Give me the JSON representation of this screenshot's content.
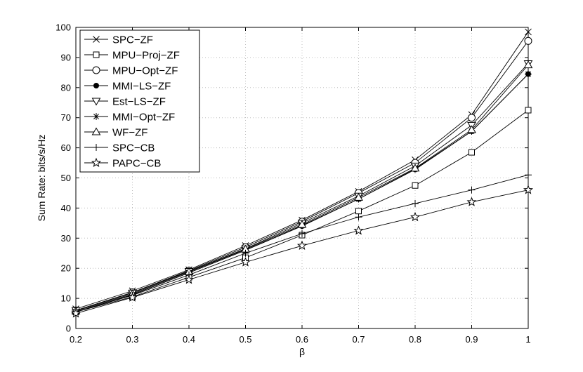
{
  "chart_data": {
    "type": "line",
    "title": "",
    "xlabel": "β",
    "ylabel": "Sum Rate: bits/s/Hz",
    "xlim": [
      0.2,
      1.0
    ],
    "ylim": [
      0,
      100
    ],
    "grid": true,
    "legend_position": "top-left",
    "x": [
      0.2,
      0.3,
      0.4,
      0.5,
      0.6,
      0.7,
      0.8,
      0.9,
      1.0
    ],
    "x_tick_labels": [
      "0.2",
      "0.3",
      "0.4",
      "0.5",
      "0.6",
      "0.7",
      "0.8",
      "0.9",
      "1"
    ],
    "y_tick_labels": [
      "0",
      "10",
      "20",
      "30",
      "40",
      "50",
      "60",
      "70",
      "80",
      "90",
      "100"
    ],
    "series": [
      {
        "name": "SPC−ZF",
        "marker": "x",
        "values": [
          6.5,
          12.5,
          19.5,
          27.5,
          36.0,
          45.5,
          56.0,
          71.0,
          98.5
        ]
      },
      {
        "name": "MPU−Proj−ZF",
        "marker": "square",
        "values": [
          5.5,
          10.5,
          17.0,
          23.5,
          31.0,
          39.0,
          47.5,
          58.5,
          72.5
        ]
      },
      {
        "name": "MPU−Opt−ZF",
        "marker": "circle",
        "values": [
          6.0,
          12.0,
          19.2,
          27.0,
          35.5,
          45.0,
          55.0,
          70.0,
          95.5
        ]
      },
      {
        "name": "MMI−LS−ZF",
        "marker": "dot",
        "values": [
          5.5,
          11.2,
          18.5,
          26.0,
          34.0,
          43.0,
          52.8,
          65.5,
          84.5
        ]
      },
      {
        "name": "Est−LS−ZF",
        "marker": "triangle-down",
        "values": [
          6.0,
          11.8,
          19.0,
          26.5,
          35.0,
          44.0,
          54.0,
          67.5,
          88.0
        ]
      },
      {
        "name": "MMI−Opt−ZF",
        "marker": "asterisk",
        "values": [
          5.5,
          11.2,
          18.5,
          26.0,
          34.2,
          43.0,
          53.0,
          65.5,
          84.5
        ]
      },
      {
        "name": "WF−ZF",
        "marker": "triangle-up",
        "values": [
          5.8,
          11.5,
          18.8,
          26.3,
          34.5,
          43.5,
          53.2,
          66.0,
          87.5
        ]
      },
      {
        "name": "SPC−CB",
        "marker": "plus",
        "values": [
          5.5,
          11.0,
          17.8,
          25.0,
          31.5,
          37.0,
          41.5,
          46.0,
          51.0
        ]
      },
      {
        "name": "PAPC−CB",
        "marker": "star",
        "values": [
          5.0,
          10.3,
          16.2,
          22.0,
          27.5,
          32.5,
          37.0,
          42.0,
          46.0
        ]
      }
    ]
  }
}
